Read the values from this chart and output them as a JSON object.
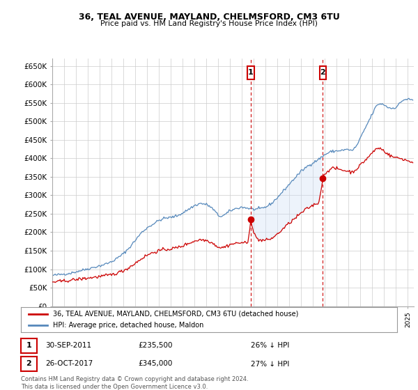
{
  "title": "36, TEAL AVENUE, MAYLAND, CHELMSFORD, CM3 6TU",
  "subtitle": "Price paid vs. HM Land Registry's House Price Index (HPI)",
  "ylim": [
    0,
    670000
  ],
  "yticks": [
    0,
    50000,
    100000,
    150000,
    200000,
    250000,
    300000,
    350000,
    400000,
    450000,
    500000,
    550000,
    600000,
    650000
  ],
  "xlim_start": 1995.0,
  "xlim_end": 2025.5,
  "legend_entries": [
    "36, TEAL AVENUE, MAYLAND, CHELMSFORD, CM3 6TU (detached house)",
    "HPI: Average price, detached house, Maldon"
  ],
  "sale_line_color": "#cc0000",
  "hpi_line_color": "#5588bb",
  "shade_color": "#ccddf5",
  "vline_color": "#cc0000",
  "annotation_box_color": "#cc0000",
  "sale1_x": 2011.75,
  "sale1_y": 235500,
  "sale1_label": "1",
  "sale1_date": "30-SEP-2011",
  "sale1_price": "£235,500",
  "sale1_hpi": "26% ↓ HPI",
  "sale2_x": 2017.82,
  "sale2_y": 345000,
  "sale2_label": "2",
  "sale2_date": "26-OCT-2017",
  "sale2_price": "£345,000",
  "sale2_hpi": "27% ↓ HPI",
  "footer": "Contains HM Land Registry data © Crown copyright and database right 2024.\nThis data is licensed under the Open Government Licence v3.0.",
  "plot_bg_color": "#ffffff",
  "grid_color": "#cccccc",
  "hpi_anchors": [
    [
      1995.0,
      83000
    ],
    [
      1995.5,
      85000
    ],
    [
      1996.0,
      87000
    ],
    [
      1996.5,
      89000
    ],
    [
      1997.0,
      93000
    ],
    [
      1997.5,
      97000
    ],
    [
      1998.0,
      101000
    ],
    [
      1998.5,
      105000
    ],
    [
      1999.0,
      109000
    ],
    [
      1999.5,
      114000
    ],
    [
      2000.0,
      120000
    ],
    [
      2000.5,
      130000
    ],
    [
      2001.0,
      142000
    ],
    [
      2001.5,
      158000
    ],
    [
      2002.0,
      178000
    ],
    [
      2002.5,
      198000
    ],
    [
      2003.0,
      212000
    ],
    [
      2003.5,
      222000
    ],
    [
      2004.0,
      232000
    ],
    [
      2004.5,
      238000
    ],
    [
      2005.0,
      240000
    ],
    [
      2005.5,
      244000
    ],
    [
      2006.0,
      252000
    ],
    [
      2006.5,
      262000
    ],
    [
      2007.0,
      272000
    ],
    [
      2007.5,
      278000
    ],
    [
      2008.0,
      275000
    ],
    [
      2008.3,
      270000
    ],
    [
      2008.7,
      258000
    ],
    [
      2009.0,
      245000
    ],
    [
      2009.3,
      243000
    ],
    [
      2009.6,
      248000
    ],
    [
      2010.0,
      258000
    ],
    [
      2010.5,
      264000
    ],
    [
      2011.0,
      268000
    ],
    [
      2011.5,
      265000
    ],
    [
      2012.0,
      262000
    ],
    [
      2012.5,
      263000
    ],
    [
      2013.0,
      268000
    ],
    [
      2013.5,
      278000
    ],
    [
      2014.0,
      294000
    ],
    [
      2014.5,
      312000
    ],
    [
      2015.0,
      330000
    ],
    [
      2015.5,
      348000
    ],
    [
      2016.0,
      365000
    ],
    [
      2016.5,
      378000
    ],
    [
      2017.0,
      388000
    ],
    [
      2017.5,
      398000
    ],
    [
      2018.0,
      410000
    ],
    [
      2018.5,
      418000
    ],
    [
      2019.0,
      420000
    ],
    [
      2019.5,
      422000
    ],
    [
      2020.0,
      424000
    ],
    [
      2020.3,
      420000
    ],
    [
      2020.7,
      435000
    ],
    [
      2021.0,
      455000
    ],
    [
      2021.5,
      488000
    ],
    [
      2022.0,
      520000
    ],
    [
      2022.3,
      540000
    ],
    [
      2022.6,
      548000
    ],
    [
      2023.0,
      545000
    ],
    [
      2023.3,
      538000
    ],
    [
      2023.6,
      535000
    ],
    [
      2024.0,
      538000
    ],
    [
      2024.3,
      548000
    ],
    [
      2024.6,
      558000
    ],
    [
      2025.0,
      560000
    ],
    [
      2025.3,
      558000
    ]
  ],
  "prop_anchors": [
    [
      1995.0,
      65000
    ],
    [
      1996.0,
      68000
    ],
    [
      1997.0,
      72000
    ],
    [
      1998.0,
      76000
    ],
    [
      1999.0,
      80000
    ],
    [
      2000.0,
      85000
    ],
    [
      2000.5,
      90000
    ],
    [
      2001.0,
      96000
    ],
    [
      2001.5,
      105000
    ],
    [
      2002.0,
      116000
    ],
    [
      2002.5,
      128000
    ],
    [
      2003.0,
      138000
    ],
    [
      2003.5,
      145000
    ],
    [
      2004.0,
      150000
    ],
    [
      2004.5,
      153000
    ],
    [
      2005.0,
      155000
    ],
    [
      2005.5,
      158000
    ],
    [
      2006.0,
      163000
    ],
    [
      2006.5,
      170000
    ],
    [
      2007.0,
      176000
    ],
    [
      2007.5,
      180000
    ],
    [
      2008.0,
      178000
    ],
    [
      2008.3,
      175000
    ],
    [
      2008.7,
      167000
    ],
    [
      2009.0,
      160000
    ],
    [
      2009.3,
      158000
    ],
    [
      2009.6,
      161000
    ],
    [
      2010.0,
      167000
    ],
    [
      2010.5,
      170000
    ],
    [
      2011.0,
      172000
    ],
    [
      2011.5,
      170000
    ],
    [
      2011.75,
      235500
    ],
    [
      2012.0,
      197000
    ],
    [
      2012.3,
      182000
    ],
    [
      2012.6,
      178000
    ],
    [
      2013.0,
      178000
    ],
    [
      2013.5,
      183000
    ],
    [
      2014.0,
      195000
    ],
    [
      2014.5,
      210000
    ],
    [
      2015.0,
      225000
    ],
    [
      2015.5,
      238000
    ],
    [
      2016.0,
      252000
    ],
    [
      2016.5,
      264000
    ],
    [
      2017.0,
      273000
    ],
    [
      2017.5,
      281000
    ],
    [
      2017.82,
      345000
    ],
    [
      2018.0,
      358000
    ],
    [
      2018.3,
      368000
    ],
    [
      2018.6,
      373000
    ],
    [
      2019.0,
      372000
    ],
    [
      2019.5,
      368000
    ],
    [
      2020.0,
      365000
    ],
    [
      2020.3,
      362000
    ],
    [
      2020.7,
      372000
    ],
    [
      2021.0,
      382000
    ],
    [
      2021.5,
      398000
    ],
    [
      2022.0,
      415000
    ],
    [
      2022.3,
      425000
    ],
    [
      2022.6,
      428000
    ],
    [
      2023.0,
      420000
    ],
    [
      2023.3,
      412000
    ],
    [
      2023.6,
      405000
    ],
    [
      2024.0,
      402000
    ],
    [
      2024.3,
      400000
    ],
    [
      2024.6,
      398000
    ],
    [
      2025.0,
      393000
    ],
    [
      2025.3,
      390000
    ]
  ]
}
